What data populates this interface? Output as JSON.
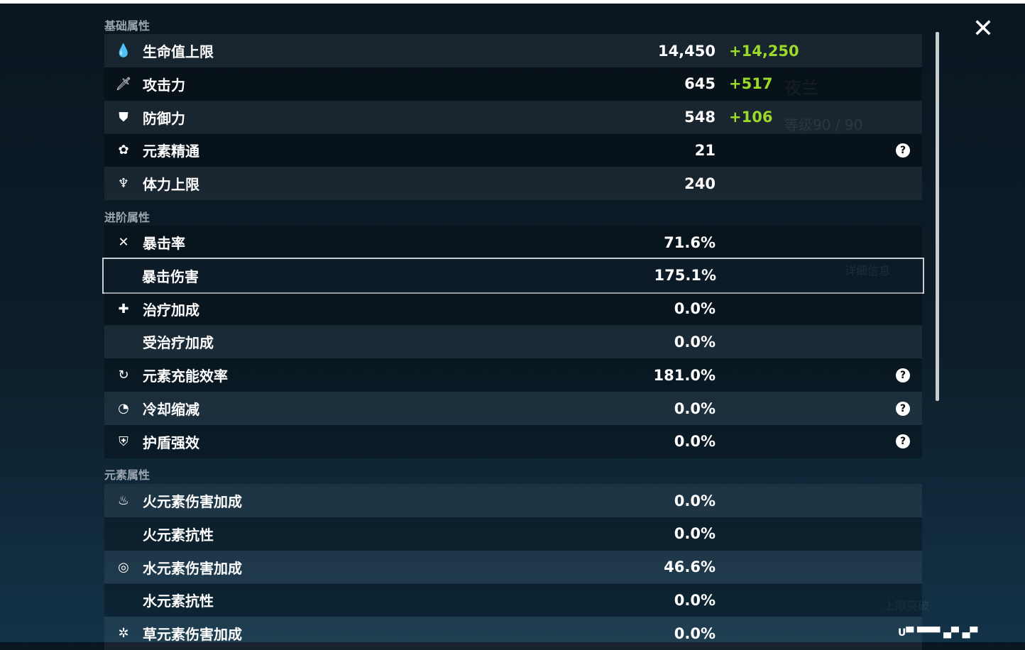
{
  "sections": [
    {
      "title": "基础属性",
      "rows": [
        {
          "icon": "hp-drop-icon",
          "glyph": "💧",
          "label": "生命值上限",
          "value": "14,450",
          "bonus": "+14,250"
        },
        {
          "icon": "sword-icon",
          "glyph": "🗡",
          "label": "攻击力",
          "value": "645",
          "bonus": "+517"
        },
        {
          "icon": "shield-icon",
          "glyph": "⛊",
          "label": "防御力",
          "value": "548",
          "bonus": "+106"
        },
        {
          "icon": "elemental-mastery-icon",
          "glyph": "✿",
          "label": "元素精通",
          "value": "21",
          "help": true
        },
        {
          "icon": "stamina-icon",
          "glyph": "♆",
          "label": "体力上限",
          "value": "240"
        }
      ]
    },
    {
      "title": "进阶属性",
      "rows": [
        {
          "icon": "crit-rate-icon",
          "glyph": "✕",
          "label": "暴击率",
          "value": "71.6%"
        },
        {
          "icon": "crit-dmg-icon",
          "glyph": "",
          "label": "暴击伤害",
          "value": "175.1%",
          "selected": true
        },
        {
          "icon": "healing-icon",
          "glyph": "✚",
          "label": "治疗加成",
          "value": "0.0%"
        },
        {
          "icon": "",
          "glyph": "",
          "label": "受治疗加成",
          "value": "0.0%"
        },
        {
          "icon": "energy-recharge-icon",
          "glyph": "↻",
          "label": "元素充能效率",
          "value": "181.0%",
          "help": true
        },
        {
          "icon": "cooldown-icon",
          "glyph": "◔",
          "label": "冷却缩减",
          "value": "0.0%",
          "help": true
        },
        {
          "icon": "shield-strength-icon",
          "glyph": "⛨",
          "label": "护盾强效",
          "value": "0.0%",
          "help": true
        }
      ]
    },
    {
      "title": "元素属性",
      "rows": [
        {
          "icon": "pyro-icon",
          "glyph": "♨",
          "label": "火元素伤害加成",
          "value": "0.0%"
        },
        {
          "icon": "",
          "glyph": "",
          "label": "火元素抗性",
          "value": "0.0%"
        },
        {
          "icon": "hydro-icon",
          "glyph": "◎",
          "label": "水元素伤害加成",
          "value": "46.6%"
        },
        {
          "icon": "",
          "glyph": "",
          "label": "水元素抗性",
          "value": "0.0%"
        },
        {
          "icon": "dendro-icon",
          "glyph": "✲",
          "label": "草元素伤害加成",
          "value": "0.0%"
        }
      ]
    }
  ],
  "background": {
    "character_name": "夜兰",
    "level": "等级90 / 90",
    "details_button": "详细信息",
    "ascend_button": "上限突破"
  },
  "help_glyph": "?",
  "close_glyph": "✕",
  "colors": {
    "bonus": "#9bd92b",
    "selected_outline": "#c9ced2"
  }
}
